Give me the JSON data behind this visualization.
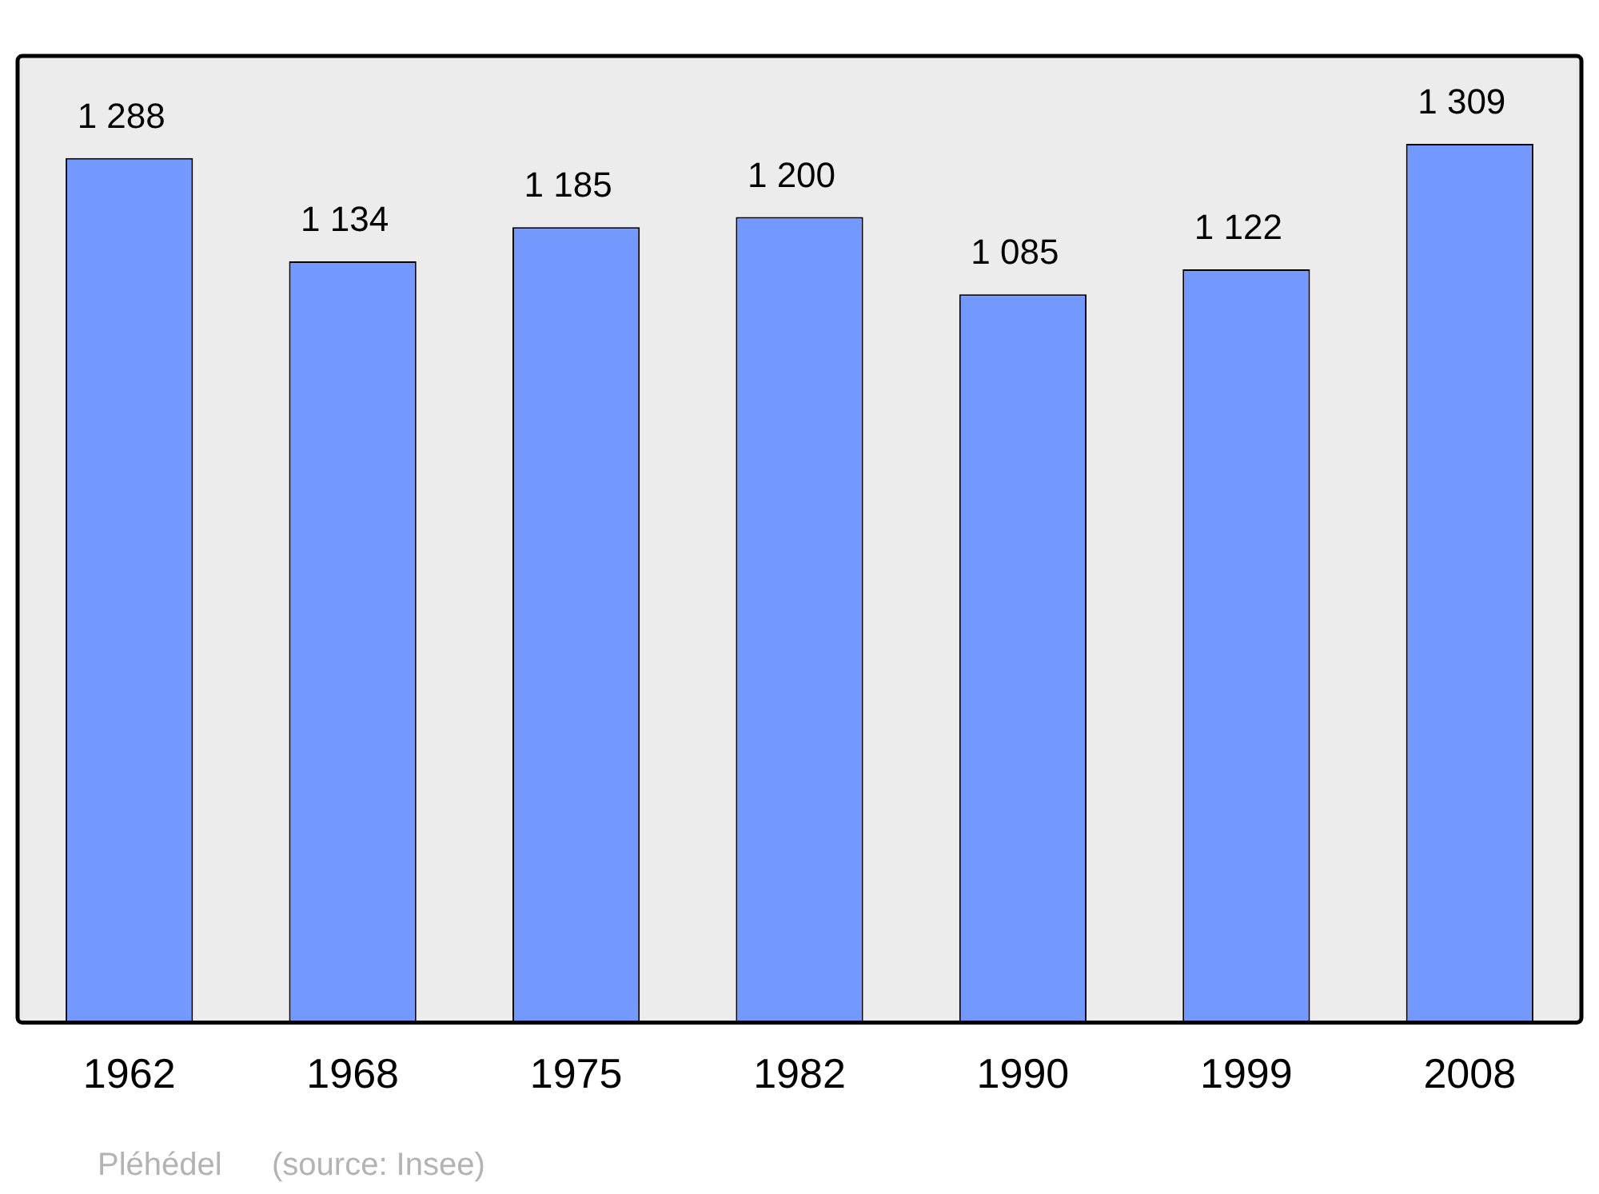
{
  "chart_data": {
    "type": "bar",
    "categories": [
      "1962",
      "1968",
      "1975",
      "1982",
      "1990",
      "1999",
      "2008"
    ],
    "values": [
      1288,
      1134,
      1185,
      1200,
      1085,
      1122,
      1309
    ],
    "value_labels": [
      "1 288",
      "1 134",
      "1 185",
      "1 200",
      "1 085",
      "1 122",
      "1 309"
    ],
    "color": "#7399ff",
    "ylim": [
      0,
      1440
    ],
    "tick_labels": "x",
    "grid": false,
    "legend": false,
    "annotations": [
      "Pléhédel",
      "(source: Insee)"
    ]
  }
}
